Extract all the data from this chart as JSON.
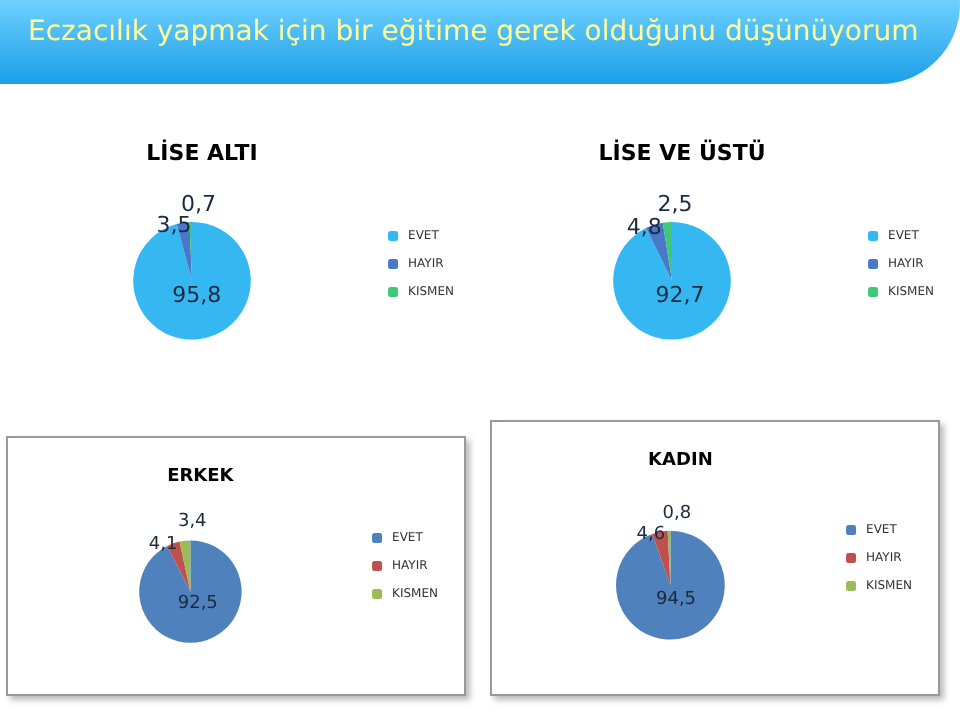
{
  "chart_data": [
    {
      "type": "other",
      "title": "Eczacılık yapmak için bir eğitime gerek olduğunu düşünüyorum"
    },
    {
      "type": "pie",
      "title": "LİSE ALTI",
      "categories": [
        "EVET",
        "HAYIR",
        "KISMEN"
      ],
      "values": [
        95.8,
        3.5,
        0.7
      ],
      "value_labels": [
        "95,8",
        "3,5",
        "0,7"
      ],
      "colors": [
        "#35b8f2",
        "#4a78c8",
        "#3ec878"
      ],
      "legend": "right"
    },
    {
      "type": "pie",
      "title": "LİSE VE ÜSTÜ",
      "categories": [
        "EVET",
        "HAYIR",
        "KISMEN"
      ],
      "values": [
        92.7,
        4.8,
        2.5
      ],
      "value_labels": [
        "92,7",
        "4,8",
        "2,5"
      ],
      "colors": [
        "#35b8f2",
        "#4a78c8",
        "#3ec878"
      ],
      "legend": "right"
    },
    {
      "type": "pie",
      "title": "ERKEK",
      "categories": [
        "EVET",
        "HAYIR",
        "KISMEN"
      ],
      "values": [
        92.5,
        4.1,
        3.4
      ],
      "value_labels": [
        "92,5",
        "4,1",
        "3,4"
      ],
      "colors": [
        "#4f81bd",
        "#c0504d",
        "#9bbb59"
      ],
      "legend": "right"
    },
    {
      "type": "pie",
      "title": "KADIN",
      "categories": [
        "EVET",
        "HAYIR",
        "KISMEN"
      ],
      "values": [
        94.5,
        4.6,
        0.8
      ],
      "value_labels": [
        "94,5",
        "4,6",
        "0,8"
      ],
      "colors": [
        "#4f81bd",
        "#c0504d",
        "#9bbb59"
      ],
      "legend": "right"
    }
  ]
}
